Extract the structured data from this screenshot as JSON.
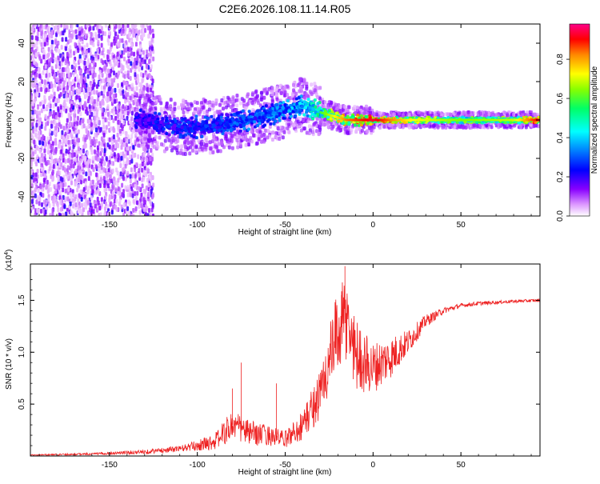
{
  "title": "C2E6.2026.108.11.14.R05",
  "chart_data": [
    {
      "type": "heatmap",
      "title": "C2E6.2026.108.11.14.R05",
      "xlabel": "Height of straight line (km)",
      "ylabel": "Frequency (Hz)",
      "xlim": [
        -195,
        95
      ],
      "ylim": [
        -50,
        50
      ],
      "x_ticks": [
        -150,
        -100,
        -50,
        0,
        50
      ],
      "x_tick_labels": [
        "-150",
        "-100",
        "-50",
        "0",
        "50"
      ],
      "y_ticks": [
        -40,
        -20,
        0,
        20,
        40
      ],
      "y_tick_labels": [
        "-40",
        "-20",
        "0",
        "20",
        "40"
      ],
      "colorbar": {
        "label": "Normalized spectral amplitude",
        "range": [
          0,
          1
        ],
        "ticks": [
          0.0,
          0.2,
          0.4,
          0.6,
          0.8
        ],
        "tick_labels": [
          "0.0",
          "0.2",
          "0.4",
          "0.6",
          "0.8"
        ],
        "colormap": [
          "#ffffff",
          "#8800ff",
          "#0000ff",
          "#00ffff",
          "#00ff00",
          "#ffff00",
          "#ff8800",
          "#ff0000",
          "#ff00aa"
        ]
      },
      "ridge": {
        "description_points_x_km": [
          -195,
          -170,
          -130,
          -110,
          -90,
          -70,
          -50,
          -40,
          -30,
          -15,
          0,
          20,
          50,
          80,
          95
        ],
        "center_freq_hz": [
          0,
          3,
          0,
          -4,
          -3,
          0,
          5,
          8,
          4,
          0,
          0,
          0,
          0,
          0,
          0
        ],
        "peak_amplitude": [
          0.15,
          0.2,
          0.25,
          0.3,
          0.3,
          0.35,
          0.4,
          0.45,
          0.6,
          0.85,
          0.95,
          0.75,
          0.65,
          0.7,
          0.95
        ]
      }
    },
    {
      "type": "line",
      "xlabel": "Height of straight line (km)",
      "ylabel": "SNR (10 * v/v)",
      "y_multiplier_label": "(x10",
      "y_multiplier_exp": "4",
      "xlim": [
        -195,
        95
      ],
      "ylim": [
        0,
        1.85
      ],
      "x_ticks": [
        -150,
        -100,
        -50,
        0,
        50
      ],
      "x_tick_labels": [
        "-150",
        "-100",
        "-50",
        "0",
        "50"
      ],
      "y_ticks": [
        0.5,
        1.0,
        1.5
      ],
      "y_tick_labels": [
        "0.5",
        "1.0",
        "1.5"
      ],
      "series": [
        {
          "name": "SNR",
          "color": "#ee2222",
          "envelope_x_km": [
            -195,
            -160,
            -130,
            -110,
            -100,
            -90,
            -80,
            -70,
            -60,
            -50,
            -40,
            -30,
            -25,
            -20,
            -15,
            -10,
            -5,
            0,
            10,
            20,
            30,
            40,
            50,
            60,
            70,
            80,
            95
          ],
          "envelope_y": [
            0.01,
            0.02,
            0.04,
            0.07,
            0.1,
            0.14,
            0.3,
            0.22,
            0.2,
            0.16,
            0.3,
            0.6,
            0.9,
            1.2,
            1.3,
            1.0,
            0.9,
            0.85,
            0.95,
            1.1,
            1.3,
            1.4,
            1.45,
            1.47,
            1.48,
            1.49,
            1.5
          ],
          "noise_amp": [
            0.005,
            0.01,
            0.02,
            0.03,
            0.05,
            0.08,
            0.15,
            0.12,
            0.1,
            0.08,
            0.15,
            0.25,
            0.35,
            0.4,
            0.45,
            0.35,
            0.3,
            0.25,
            0.2,
            0.12,
            0.06,
            0.03,
            0.02,
            0.02,
            0.015,
            0.015,
            0.015
          ],
          "peak_spikes_x_km": [
            -80,
            -75,
            -55,
            -18,
            -16
          ],
          "peak_spikes_y": [
            0.65,
            0.9,
            0.7,
            1.55,
            1.83
          ]
        }
      ]
    }
  ]
}
